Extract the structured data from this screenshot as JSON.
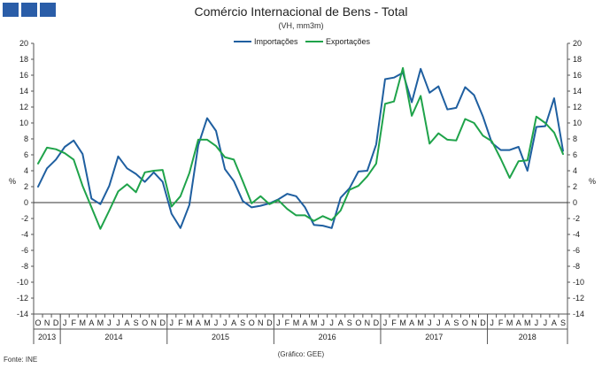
{
  "header": {
    "title": "Comércio Internacional de Bens - Total",
    "subtitle": "(VH, mm3m)"
  },
  "footer": {
    "source": "Fonte:  INE",
    "credit": "(Gráfico:  GEE)"
  },
  "colors": {
    "importacoes": "#1f5fa0",
    "exportacoes": "#1fa34a",
    "logo": "#2a5da8"
  },
  "chart_data": {
    "type": "line",
    "title": "Comércio Internacional de Bens - Total",
    "subtitle": "(VH, mm3m)",
    "ylabel": "%",
    "ylabel_right": "%",
    "ylim": [
      -14,
      20
    ],
    "ytick_step": 2,
    "grid": false,
    "legend": "top-center",
    "month_labels": [
      "O",
      "N",
      "D",
      "J",
      "F",
      "M",
      "A",
      "M",
      "J",
      "J",
      "A",
      "S",
      "O",
      "N",
      "D",
      "J",
      "F",
      "M",
      "A",
      "M",
      "J",
      "J",
      "A",
      "S",
      "O",
      "N",
      "D",
      "J",
      "F",
      "M",
      "A",
      "M",
      "J",
      "J",
      "A",
      "S",
      "O",
      "N",
      "D",
      "J",
      "F",
      "M",
      "A",
      "M",
      "J",
      "J",
      "A",
      "S",
      "O",
      "N",
      "D",
      "J",
      "F",
      "M",
      "A",
      "M",
      "J",
      "J",
      "A",
      "S"
    ],
    "years": [
      {
        "label": "2013",
        "start": 0,
        "count": 3
      },
      {
        "label": "2014",
        "start": 3,
        "count": 12
      },
      {
        "label": "2015",
        "start": 15,
        "count": 12
      },
      {
        "label": "2016",
        "start": 27,
        "count": 12
      },
      {
        "label": "2017",
        "start": 39,
        "count": 12
      },
      {
        "label": "2018",
        "start": 51,
        "count": 9
      }
    ],
    "series": [
      {
        "name": "Importações",
        "values": [
          2.0,
          4.3,
          5.4,
          7.0,
          7.8,
          6.1,
          0.5,
          -0.2,
          2.1,
          5.8,
          4.3,
          3.6,
          2.6,
          3.8,
          2.6,
          -1.4,
          -3.2,
          -0.3,
          7.2,
          10.6,
          9.0,
          4.2,
          2.7,
          0.2,
          -0.6,
          -0.4,
          -0.1,
          0.4,
          1.1,
          0.8,
          -0.6,
          -2.8,
          -2.9,
          -3.2,
          0.6,
          1.8,
          3.9,
          4.0,
          7.3,
          15.5,
          15.7,
          16.3,
          12.6,
          16.8,
          13.8,
          14.6,
          11.7,
          11.9,
          14.5,
          13.5,
          10.8,
          7.5,
          6.6,
          6.6,
          7.0,
          4.0,
          9.5,
          9.6,
          13.1,
          6.5
        ]
      },
      {
        "name": "Exportações",
        "values": [
          4.9,
          6.9,
          6.7,
          6.2,
          5.4,
          2.1,
          -0.6,
          -3.3,
          -1.0,
          1.4,
          2.3,
          1.3,
          3.8,
          4.0,
          4.1,
          -0.5,
          0.8,
          3.7,
          7.9,
          7.9,
          7.1,
          5.7,
          5.4,
          2.7,
          -0.1,
          0.8,
          -0.2,
          0.3,
          -0.8,
          -1.6,
          -1.6,
          -2.3,
          -1.7,
          -2.2,
          -1.0,
          1.6,
          2.1,
          3.3,
          4.9,
          12.4,
          12.7,
          16.9,
          10.9,
          13.4,
          7.4,
          8.7,
          7.9,
          7.8,
          10.5,
          10.0,
          8.4,
          7.7,
          5.5,
          3.1,
          5.2,
          5.3,
          10.8,
          10.0,
          8.8,
          6.1
        ]
      }
    ]
  }
}
